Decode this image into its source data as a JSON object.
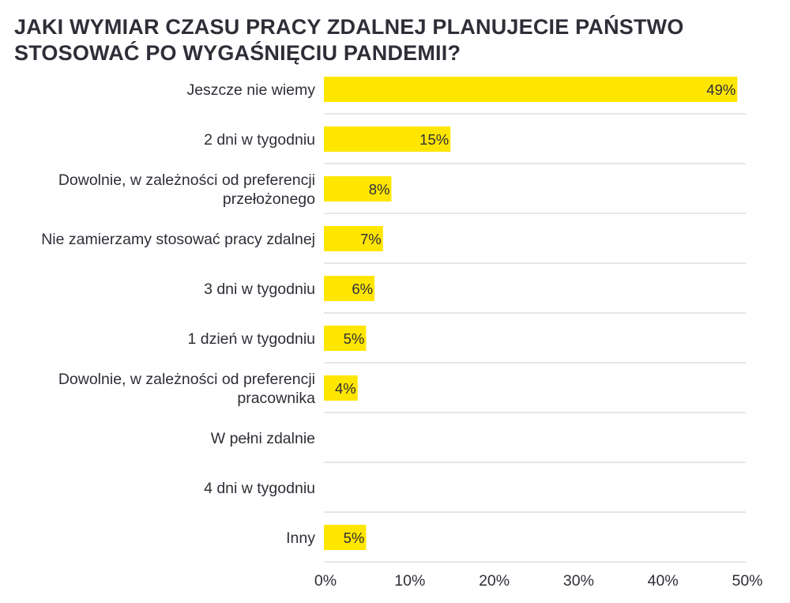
{
  "chart_data": {
    "type": "bar",
    "orientation": "horizontal",
    "title": "JAKI WYMIAR CZASU PRACY ZDALNEJ PLANUJECIE PAŃSTWO STOSOWAĆ PO WYGAŚNIĘCIU PANDEMII?",
    "categories": [
      "Jeszcze nie wiemy",
      "2 dni w tygodniu",
      "Dowolnie, w zależności od preferencji przełożonego",
      "Nie zamierzamy stosować pracy zdalnej",
      "3 dni w tygodniu",
      "1 dzień w tygodniu",
      "Dowolnie, w zależności od preferencji pracownika",
      "W pełni zdalnie",
      "4 dni w tygodniu",
      "Inny"
    ],
    "values": [
      49,
      15,
      8,
      7,
      6,
      5,
      4,
      0,
      0,
      5
    ],
    "data_labels": [
      "49%",
      "15%",
      "8%",
      "7%",
      "6%",
      "5%",
      "4%",
      "",
      "",
      "5%"
    ],
    "x_ticks": [
      "0%",
      "10%",
      "20%",
      "30%",
      "40%",
      "50%"
    ],
    "xlim": [
      0,
      50
    ],
    "grid": "horizontal separators",
    "bar_color": "#ffe600"
  }
}
